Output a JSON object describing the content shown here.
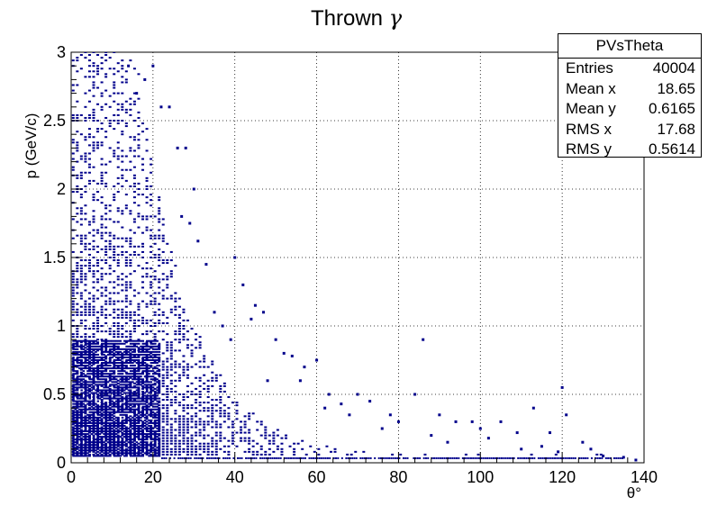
{
  "chart_data": {
    "type": "scatter",
    "title": "Thrown",
    "title_symbol": "γ",
    "xlabel": "θ°",
    "ylabel": "p (GeV/c)",
    "xlim": [
      0,
      140
    ],
    "ylim": [
      0,
      3
    ],
    "x_ticks": [
      "0",
      "20",
      "40",
      "60",
      "80",
      "100",
      "120",
      "140"
    ],
    "y_ticks": [
      "0",
      "0.5",
      "1",
      "1.5",
      "2",
      "2.5",
      "3"
    ],
    "grid": true,
    "marker_color": "#00008b",
    "stats": {
      "name": "PVsTheta",
      "rows": [
        {
          "label": "Entries",
          "value": "40004"
        },
        {
          "label": "Mean x",
          "value": "18.65"
        },
        {
          "label": "Mean y",
          "value": "0.6165"
        },
        {
          "label": "RMS x",
          "value": "17.68"
        },
        {
          "label": "RMS y",
          "value": "0.5614"
        }
      ]
    },
    "points": [
      [
        20,
        2.9
      ],
      [
        18,
        2.8
      ],
      [
        16,
        2.7
      ],
      [
        14,
        2.9
      ],
      [
        22,
        2.6
      ],
      [
        24,
        2.6
      ],
      [
        26,
        2.3
      ],
      [
        28,
        2.3
      ],
      [
        30,
        2.0
      ],
      [
        27,
        1.8
      ],
      [
        29,
        1.75
      ],
      [
        31,
        1.62
      ],
      [
        33,
        1.45
      ],
      [
        35,
        1.1
      ],
      [
        37,
        1.0
      ],
      [
        39,
        0.9
      ],
      [
        40,
        1.5
      ],
      [
        42,
        1.3
      ],
      [
        45,
        1.15
      ],
      [
        47,
        1.1
      ],
      [
        50,
        0.9
      ],
      [
        52,
        0.8
      ],
      [
        54,
        0.78
      ],
      [
        57,
        0.7
      ],
      [
        60,
        0.75
      ],
      [
        63,
        0.5
      ],
      [
        66,
        0.43
      ],
      [
        70,
        0.5
      ],
      [
        73,
        0.45
      ],
      [
        78,
        0.35
      ],
      [
        80,
        0.3
      ],
      [
        84,
        0.5
      ],
      [
        86,
        0.9
      ],
      [
        90,
        0.35
      ],
      [
        94,
        0.3
      ],
      [
        98,
        0.3
      ],
      [
        100,
        0.25
      ],
      [
        105,
        0.3
      ],
      [
        109,
        0.22
      ],
      [
        113,
        0.4
      ],
      [
        117,
        0.22
      ],
      [
        120,
        0.55
      ],
      [
        121,
        0.35
      ],
      [
        125,
        0.15
      ],
      [
        130,
        0.05
      ],
      [
        135,
        0.04
      ],
      [
        138,
        0.02
      ],
      [
        44,
        1.05
      ],
      [
        48,
        0.6
      ],
      [
        56,
        0.6
      ],
      [
        62,
        0.4
      ],
      [
        68,
        0.35
      ],
      [
        76,
        0.25
      ],
      [
        88,
        0.2
      ],
      [
        92,
        0.15
      ],
      [
        102,
        0.18
      ],
      [
        110,
        0.1
      ],
      [
        115,
        0.12
      ],
      [
        119,
        0.08
      ],
      [
        127,
        0.1
      ]
    ]
  }
}
